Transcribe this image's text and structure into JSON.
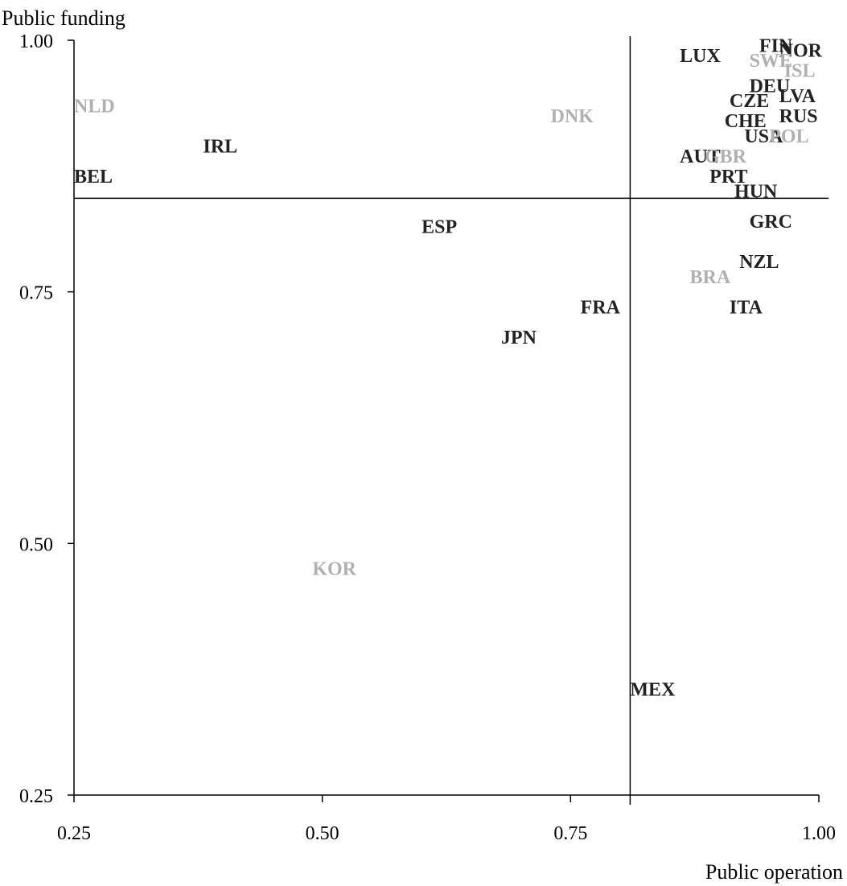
{
  "chart_data": {
    "type": "scatter",
    "xlabel": "Public operation",
    "ylabel": "Public funding",
    "xlim": [
      0.25,
      1.0
    ],
    "ylim": [
      0.25,
      1.0
    ],
    "xticks": [
      "0.25",
      "0.50",
      "0.75",
      "1.00"
    ],
    "yticks": [
      "0.25",
      "0.50",
      "0.75",
      "1.00"
    ],
    "reference_lines": {
      "x": 0.81,
      "y": 0.843
    },
    "grid": false,
    "colors": {
      "dark": "#222222",
      "light": "#b0b0b0"
    },
    "points": [
      {
        "label": "NLD",
        "x": 0.25,
        "y": 0.935,
        "shade": "light"
      },
      {
        "label": "BEL",
        "x": 0.25,
        "y": 0.865,
        "shade": "dark"
      },
      {
        "label": "IRL",
        "x": 0.38,
        "y": 0.895,
        "shade": "dark"
      },
      {
        "label": "DNK",
        "x": 0.73,
        "y": 0.925,
        "shade": "light"
      },
      {
        "label": "ESP",
        "x": 0.6,
        "y": 0.815,
        "shade": "dark"
      },
      {
        "label": "KOR",
        "x": 0.49,
        "y": 0.475,
        "shade": "light"
      },
      {
        "label": "JPN",
        "x": 0.68,
        "y": 0.705,
        "shade": "dark"
      },
      {
        "label": "FRA",
        "x": 0.76,
        "y": 0.735,
        "shade": "dark"
      },
      {
        "label": "MEX",
        "x": 0.81,
        "y": 0.355,
        "shade": "dark"
      },
      {
        "label": "LUX",
        "x": 0.86,
        "y": 0.985,
        "shade": "dark"
      },
      {
        "label": "FIN",
        "x": 0.94,
        "y": 0.995,
        "shade": "dark"
      },
      {
        "label": "NOR",
        "x": 0.96,
        "y": 0.99,
        "shade": "dark"
      },
      {
        "label": "SWE",
        "x": 0.93,
        "y": 0.98,
        "shade": "light"
      },
      {
        "label": "ISL",
        "x": 0.965,
        "y": 0.97,
        "shade": "light"
      },
      {
        "label": "DEU",
        "x": 0.93,
        "y": 0.955,
        "shade": "dark"
      },
      {
        "label": "LVA",
        "x": 0.96,
        "y": 0.945,
        "shade": "dark"
      },
      {
        "label": "CZE",
        "x": 0.91,
        "y": 0.94,
        "shade": "dark"
      },
      {
        "label": "RUS",
        "x": 0.96,
        "y": 0.925,
        "shade": "dark"
      },
      {
        "label": "CHE",
        "x": 0.905,
        "y": 0.92,
        "shade": "dark"
      },
      {
        "label": "USA",
        "x": 0.925,
        "y": 0.905,
        "shade": "dark"
      },
      {
        "label": "POL",
        "x": 0.95,
        "y": 0.905,
        "shade": "light"
      },
      {
        "label": "AUT",
        "x": 0.86,
        "y": 0.885,
        "shade": "dark"
      },
      {
        "label": "GBR",
        "x": 0.885,
        "y": 0.885,
        "shade": "light"
      },
      {
        "label": "PRT",
        "x": 0.89,
        "y": 0.865,
        "shade": "dark"
      },
      {
        "label": "HUN",
        "x": 0.915,
        "y": 0.85,
        "shade": "dark"
      },
      {
        "label": "GRC",
        "x": 0.93,
        "y": 0.82,
        "shade": "dark"
      },
      {
        "label": "NZL",
        "x": 0.92,
        "y": 0.78,
        "shade": "dark"
      },
      {
        "label": "BRA",
        "x": 0.87,
        "y": 0.765,
        "shade": "light"
      },
      {
        "label": "ITA",
        "x": 0.91,
        "y": 0.735,
        "shade": "dark"
      }
    ]
  }
}
